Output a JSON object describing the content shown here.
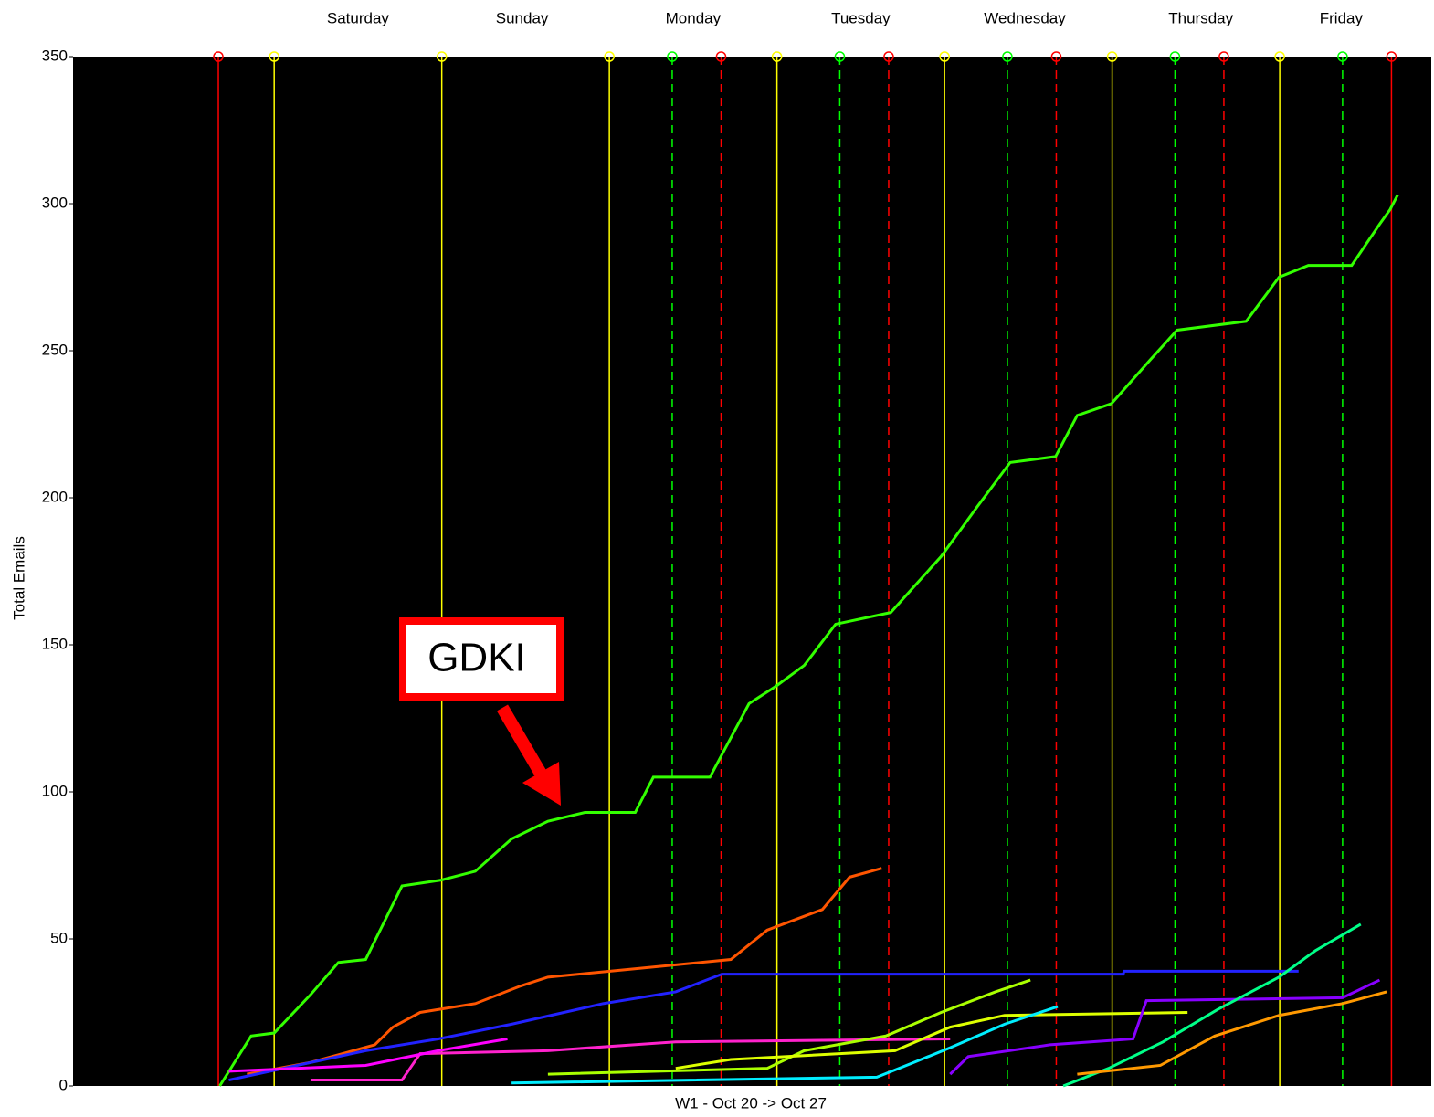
{
  "chart_data": {
    "type": "line",
    "xlabel": "W1  -  Oct 20 -> Oct 27",
    "ylabel": "Total Emails",
    "annotation": "GDKI",
    "xlim": [
      -28.8,
      165.7
    ],
    "ylim": [
      0,
      350
    ],
    "yticks": [
      0,
      50,
      100,
      150,
      200,
      250,
      300,
      350
    ],
    "day_labels": {
      "x": [
        12,
        35.5,
        60,
        84,
        107.5,
        132.7,
        152.8
      ],
      "labels": [
        "Saturday",
        "Sunday",
        "Monday",
        "Tuesday",
        "Wednesday",
        "Thursday",
        "Friday"
      ]
    },
    "vlines": [
      {
        "color": "#ff0000",
        "dashed": false,
        "x": [
          -8,
          160
        ]
      },
      {
        "color": "#ffff00",
        "dashed": false,
        "x": [
          0,
          24,
          48,
          72,
          96,
          120,
          144
        ]
      },
      {
        "color": "#00ff00",
        "dashed": true,
        "x": [
          57,
          81,
          105,
          129,
          153
        ]
      },
      {
        "color": "#ff0000",
        "dashed": true,
        "x": [
          64,
          88,
          112,
          136
        ]
      }
    ],
    "series": [
      {
        "name": "GDKI",
        "color": "#33ff00",
        "x": [
          -7.8,
          -3.3,
          0,
          5.2,
          9.2,
          13.1,
          18.3,
          23.9,
          28.8,
          34,
          39.2,
          44.5,
          51.7,
          54.3,
          62.4,
          68,
          71.9,
          75.9,
          80.4,
          88.3,
          95.5,
          100.7,
          105.4,
          111.9,
          115,
          119.9,
          125.5,
          129.3,
          139.2,
          143.9,
          148.1,
          154.3,
          158.3,
          159.8,
          160.9
        ],
        "values": [
          0,
          17,
          18,
          31,
          42,
          43,
          68,
          70,
          73,
          84,
          90,
          93,
          93,
          105,
          105,
          130,
          136,
          143,
          157,
          161,
          180,
          197,
          212,
          214,
          228,
          232,
          247,
          257,
          260,
          275,
          279,
          279,
          293,
          298,
          303
        ]
      },
      {
        "color": "#ff5500",
        "x": [
          -3.9,
          5.2,
          14.4,
          17,
          20.9,
          28.8,
          35.3,
          39.2,
          52.3,
          65.4,
          70.6,
          78.5,
          82.4,
          87
        ],
        "values": [
          4,
          8,
          14,
          20,
          25,
          28,
          34,
          37,
          40,
          43,
          53,
          60,
          71,
          74
        ]
      },
      {
        "color": "#2222ff",
        "x": [
          -6.5,
          13.1,
          23.5,
          34,
          47.1,
          57.5,
          64.1,
          121.6,
          121.7,
          146.7
        ],
        "values": [
          2,
          12,
          16,
          21,
          28,
          32,
          38,
          38,
          39,
          39
        ]
      },
      {
        "color": "#ff22cc",
        "x": [
          5.2,
          18.3,
          20.9,
          39.2,
          57.5,
          96.8
        ],
        "values": [
          2,
          2,
          11,
          12,
          15,
          16
        ]
      },
      {
        "color": "#ff00ff",
        "x": [
          -6.5,
          13.1,
          23.5,
          33.4
        ],
        "values": [
          5,
          7,
          12,
          16
        ]
      },
      {
        "color": "#aaff00",
        "x": [
          39.2,
          70.6,
          75.9,
          87.6,
          95.5,
          103.3,
          108.3
        ],
        "values": [
          4,
          6,
          12,
          17,
          25,
          32,
          36
        ]
      },
      {
        "color": "#ddff00",
        "x": [
          57.5,
          65.4,
          88.9,
          96.8,
          104.6,
          130.8
        ],
        "values": [
          6,
          9,
          12,
          20,
          24,
          25
        ]
      },
      {
        "color": "#00eeff",
        "x": [
          34,
          86.3,
          91.6,
          96.8,
          104.6,
          112.2
        ],
        "values": [
          1,
          3,
          8,
          13,
          21,
          27
        ]
      },
      {
        "color": "#8800ff",
        "x": [
          96.8,
          99.4,
          111.1,
          123,
          124.9,
          153,
          158.3
        ],
        "values": [
          4,
          10,
          14,
          16,
          29,
          30,
          36
        ]
      },
      {
        "color": "#00ff88",
        "x": [
          113,
          119.5,
          127.3,
          135.1,
          143.9,
          149.1,
          155.6
        ],
        "values": [
          0,
          6,
          15,
          26,
          37,
          46,
          55
        ]
      },
      {
        "color": "#ff9900",
        "x": [
          115,
          126.9,
          134.7,
          143.9,
          153,
          159.3
        ],
        "values": [
          4,
          7,
          17,
          24,
          28,
          32
        ]
      }
    ]
  }
}
